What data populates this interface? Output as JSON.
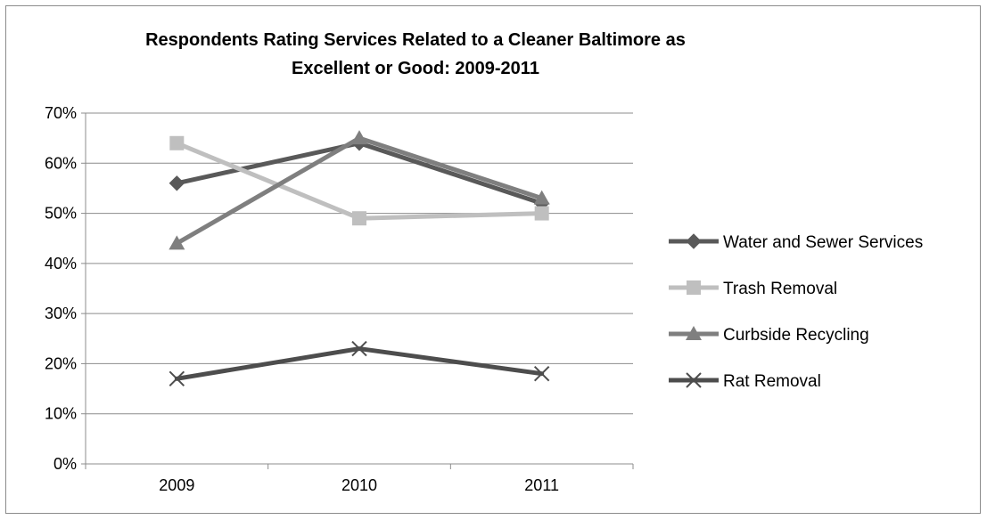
{
  "chart_data": {
    "type": "line",
    "title_lines": [
      "Respondents Rating Services Related to a Cleaner Baltimore as",
      "Excellent or Good: 2009-2011"
    ],
    "xlabel": "",
    "ylabel": "",
    "categories": [
      "2009",
      "2010",
      "2011"
    ],
    "ylim": [
      0,
      0.7
    ],
    "y_ticks": [
      0,
      0.1,
      0.2,
      0.3,
      0.4,
      0.5,
      0.6,
      0.7
    ],
    "y_tick_labels": [
      "0%",
      "10%",
      "20%",
      "30%",
      "40%",
      "50%",
      "60%",
      "70%"
    ],
    "grid": true,
    "legend_position": "right",
    "series": [
      {
        "name": "Water and Sewer Services",
        "values": [
          0.56,
          0.64,
          0.52
        ],
        "color": "#595959",
        "marker": "diamond"
      },
      {
        "name": "Trash Removal",
        "values": [
          0.64,
          0.49,
          0.5
        ],
        "color": "#bfbfbf",
        "marker": "square"
      },
      {
        "name": "Curbside Recycling",
        "values": [
          0.44,
          0.65,
          0.53
        ],
        "color": "#7f7f7f",
        "marker": "triangle"
      },
      {
        "name": "Rat Removal",
        "values": [
          0.17,
          0.23,
          0.18
        ],
        "color": "#4d4d4d",
        "marker": "x"
      }
    ]
  }
}
